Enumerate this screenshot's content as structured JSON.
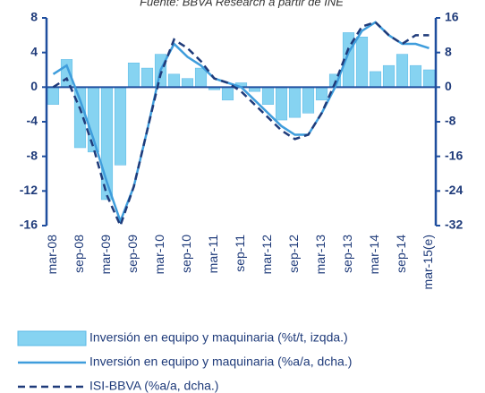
{
  "chart_data": {
    "type": "bar",
    "source": "Fuente: BBVA Research a partir de INE",
    "categories": [
      "mar-08",
      null,
      "sep-08",
      null,
      "mar-09",
      null,
      "sep-09",
      null,
      "mar-10",
      null,
      "sep-10",
      null,
      "mar-11",
      null,
      "sep-11",
      null,
      "mar-12",
      null,
      "sep-12",
      null,
      "mar-13",
      null,
      "sep-13",
      null,
      "mar-14",
      null,
      "sep-14",
      null,
      "mar-15(e)"
    ],
    "series": [
      {
        "name": "Inversión en equipo y maquinaria (%t/t, izqda.)",
        "type": "bar",
        "color": "#86d3f1",
        "values": [
          -2,
          3.2,
          -7,
          -7.5,
          -13,
          -9,
          2.8,
          2.2,
          3.8,
          1.5,
          1,
          2.2,
          -0.3,
          -1.5,
          0.5,
          -0.5,
          -2,
          -3.8,
          -3.5,
          -3,
          -1.5,
          1.5,
          6.3,
          5.8,
          1.8,
          2.5,
          3.8,
          2.5,
          2
        ]
      },
      {
        "name": "Inversión en equipo y maquinaria (%a/a, dcha.)",
        "type": "line",
        "axis": "y2",
        "color": "#3f9ddc",
        "dashed": false,
        "values": [
          3,
          5,
          -3,
          -12,
          -22,
          -31,
          -23,
          -10,
          4,
          10,
          7,
          5,
          2,
          1,
          0,
          -3,
          -6,
          -9,
          -11,
          -11,
          -6,
          0,
          8,
          13,
          15,
          12,
          10,
          10,
          9
        ]
      },
      {
        "name": "ISI-BBVA (%a/a, dcha.)",
        "type": "line",
        "axis": "y2",
        "color": "#1f3b7a",
        "dashed": true,
        "values": [
          0,
          2,
          -5,
          -14,
          -25,
          -32,
          -23,
          -10,
          3,
          11,
          9,
          6,
          2,
          1,
          -1,
          -4,
          -7,
          -10,
          -12,
          -11,
          -6,
          1,
          9,
          14,
          15,
          12,
          10,
          12,
          12
        ]
      }
    ],
    "ylim": [
      -16,
      8
    ],
    "yticks": [
      8,
      4,
      0,
      -4,
      -8,
      -12,
      -16
    ],
    "y2lim": [
      -32,
      16
    ],
    "y2ticks": [
      16,
      8,
      0,
      -8,
      -16,
      -24,
      -32
    ],
    "axis_color": "#1f4e9e"
  }
}
